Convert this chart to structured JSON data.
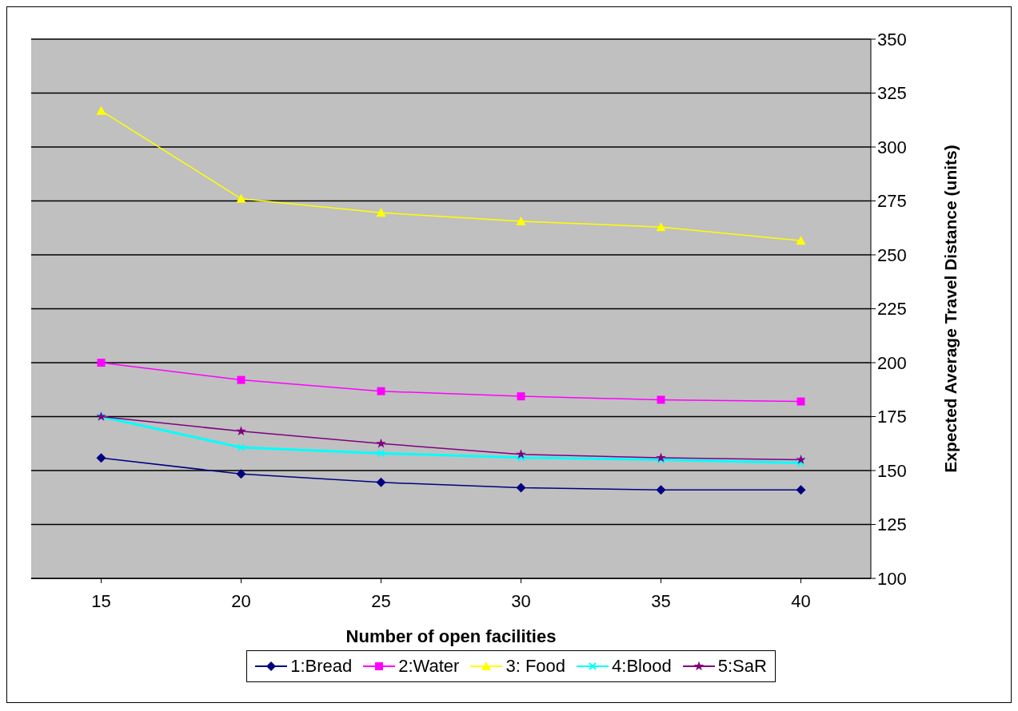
{
  "chart_data": {
    "type": "line",
    "xlabel": "Number of open facilities",
    "ylabel": "Expected Average Travel Distance (units)",
    "categories": [
      "15",
      "20",
      "25",
      "30",
      "35",
      "40"
    ],
    "series": [
      {
        "name": "1:Bread",
        "color": "#000080",
        "marker": "diamond",
        "values": [
          155.8,
          148.4,
          144.5,
          142,
          141,
          141
        ]
      },
      {
        "name": "2:Water",
        "color": "#ff00ff",
        "marker": "square",
        "values": [
          200,
          192,
          186.8,
          184.4,
          182.8,
          182
        ]
      },
      {
        "name": "3: Food",
        "color": "#ffff00",
        "marker": "triangle",
        "values": [
          316.8,
          276,
          269.5,
          265.6,
          262.9,
          256.6
        ]
      },
      {
        "name": "4:Blood",
        "color": "#00ffff",
        "marker": "cross",
        "values": [
          175,
          160.7,
          158,
          156,
          155,
          153.5
        ]
      },
      {
        "name": "5:SaR",
        "color": "#800080",
        "marker": "star",
        "values": [
          175,
          168.2,
          162.5,
          157.5,
          155.9,
          155
        ]
      }
    ],
    "ylim": [
      100,
      350
    ],
    "yticks": [
      100,
      125,
      150,
      175,
      200,
      225,
      250,
      275,
      300,
      325,
      350
    ],
    "grid": "y",
    "legend": "bottom"
  }
}
